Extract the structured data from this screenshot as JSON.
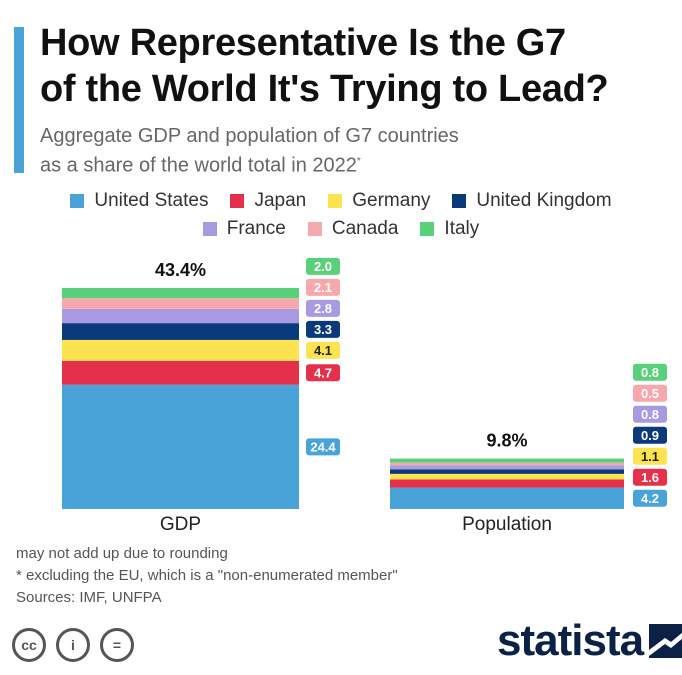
{
  "header": {
    "title": "How Representative Is the G7\nof the World It's Trying to Lead?",
    "subtitle_line1": "Aggregate GDP and population of G7 countries",
    "subtitle_line2": "as a share of the world total in 2022",
    "subtitle_mark": "*"
  },
  "chart_data": {
    "type": "bar",
    "stacked": true,
    "categories": [
      "GDP",
      "Population"
    ],
    "totals": [
      "43.4%",
      "9.8%"
    ],
    "series": [
      {
        "name": "United States",
        "color": "#4aa3d8",
        "values": [
          24.4,
          4.2
        ]
      },
      {
        "name": "Japan",
        "color": "#e4304a",
        "values": [
          4.7,
          1.6
        ]
      },
      {
        "name": "Germany",
        "color": "#fde350",
        "values": [
          4.1,
          1.1
        ]
      },
      {
        "name": "United Kingdom",
        "color": "#0b3a7a",
        "values": [
          3.3,
          0.9
        ]
      },
      {
        "name": "France",
        "color": "#a89ae0",
        "values": [
          2.8,
          0.8
        ]
      },
      {
        "name": "Canada",
        "color": "#f7a8ad",
        "values": [
          2.1,
          0.5
        ]
      },
      {
        "name": "Italy",
        "color": "#5bd07a",
        "values": [
          2.0,
          0.8
        ]
      }
    ],
    "ylim": [
      0,
      43.4
    ],
    "legend_position": "top"
  },
  "notes": {
    "line1": "may not add up due to rounding",
    "line2": "* excluding the EU, which is a \"non-enumerated member\"",
    "line3": "Sources: IMF, UNFPA"
  },
  "footer": {
    "icons": [
      "cc-icon",
      "attribution-icon",
      "no-derivatives-icon"
    ],
    "cc_symbols": [
      "cc",
      "i",
      "="
    ],
    "brand": "statista"
  }
}
